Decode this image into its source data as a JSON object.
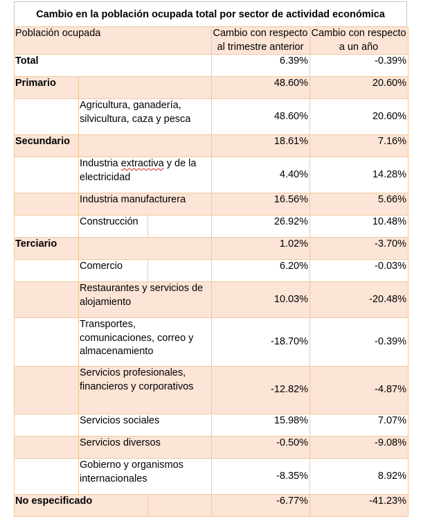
{
  "title": "Cambio en la población ocupada total por sector de actividad económica",
  "header": {
    "col0": "Población ocupada",
    "col1": "Cambio con respecto al trimestre anterior",
    "col2": "Cambio con respecto a un año"
  },
  "rows": [
    {
      "label": "Total",
      "q": "6.39%",
      "y": "-0.39%"
    },
    {
      "label": "Primario",
      "q": "48.60%",
      "y": "20.60%"
    },
    {
      "label": "Agricultura, ganadería, silvicultura, caza y pesca",
      "q": "48.60%",
      "y": "20.60%"
    },
    {
      "label": "Secundario",
      "q": "18.61%",
      "y": "7.16%"
    },
    {
      "label_a": "Industria ",
      "label_b": "extractiva",
      "label_c": " y de la electricidad",
      "q": "4.40%",
      "y": "14.28%"
    },
    {
      "label": "Industria manufacturera",
      "q": "16.56%",
      "y": "5.66%"
    },
    {
      "label": "Construcción",
      "q": "26.92%",
      "y": "10.48%"
    },
    {
      "label": "Terciario",
      "q": "1.02%",
      "y": "-3.70%"
    },
    {
      "label": "Comercio",
      "q": "6.20%",
      "y": "-0.03%"
    },
    {
      "label": "Restaurantes y servicios de alojamiento",
      "q": "10.03%",
      "y": "-20.48%"
    },
    {
      "label": "Transportes, comunicaciones, correo y almacenamiento",
      "q": "-18.70%",
      "y": "-0.39%"
    },
    {
      "label": "Servicios profesionales, financieros y corporativos",
      "q": "-12.82%",
      "y": "-4.87%"
    },
    {
      "label": "Servicios sociales",
      "q": "15.98%",
      "y": "7.07%"
    },
    {
      "label": "Servicios diversos",
      "q": "-0.50%",
      "y": "-9.08%"
    },
    {
      "label": "Gobierno y organismos internacionales",
      "q": "-8.35%",
      "y": "8.92%"
    },
    {
      "label": "No especificado",
      "q": "-6.77%",
      "y": "-41.23%"
    }
  ]
}
